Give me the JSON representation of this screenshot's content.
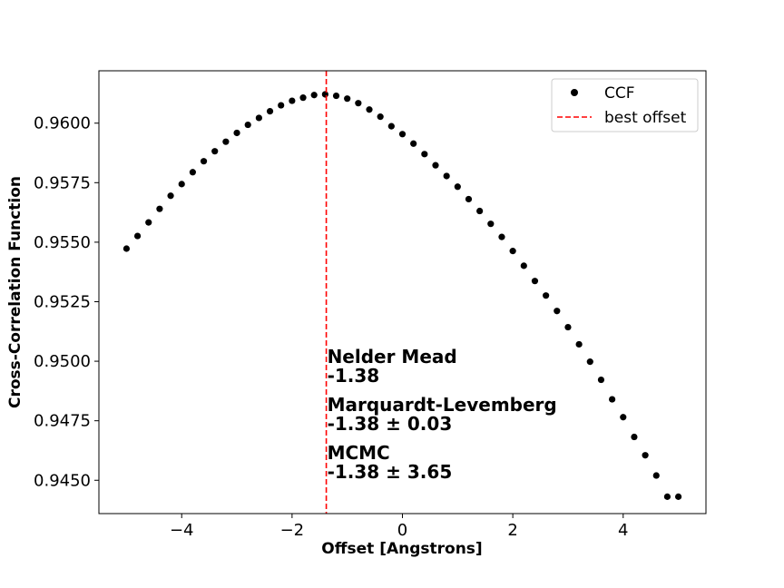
{
  "chart_data": {
    "type": "scatter",
    "xlabel": "Offset [Angstrons]",
    "ylabel": "Cross-Correlation Function",
    "xlim": [
      -5.5,
      5.5
    ],
    "ylim": [
      0.9436,
      0.9622
    ],
    "xticks": [
      -4,
      -2,
      0,
      2,
      4
    ],
    "xtick_labels": [
      "−4",
      "−2",
      "0",
      "2",
      "4"
    ],
    "yticks": [
      0.945,
      0.9475,
      0.95,
      0.9525,
      0.955,
      0.9575,
      0.96
    ],
    "ytick_labels": [
      "0.9450",
      "0.9475",
      "0.9500",
      "0.9525",
      "0.9550",
      "0.9575",
      "0.9600"
    ],
    "grid": false,
    "legend_position": "top-right",
    "series": [
      {
        "name": "CCF",
        "color": "#000000",
        "marker": "circle",
        "x": [
          -5.0,
          -4.8,
          -4.6,
          -4.4,
          -4.2,
          -4.0,
          -3.8,
          -3.6,
          -3.4,
          -3.2,
          -3.0,
          -2.8,
          -2.6,
          -2.4,
          -2.2,
          -2.0,
          -1.8,
          -1.6,
          -1.4,
          -1.2,
          -1.0,
          -0.8,
          -0.6,
          -0.4,
          -0.2,
          0.0,
          0.2,
          0.4,
          0.6,
          0.8,
          1.0,
          1.2,
          1.4,
          1.6,
          1.8,
          2.0,
          2.2,
          2.4,
          2.6,
          2.8,
          3.0,
          3.2,
          3.4,
          3.6,
          3.8,
          4.0,
          4.2,
          4.4,
          4.6,
          4.8,
          5.0
        ],
        "y": [
          0.95473,
          0.95526,
          0.95583,
          0.9564,
          0.95695,
          0.95744,
          0.95794,
          0.9584,
          0.95882,
          0.95922,
          0.95959,
          0.95993,
          0.96022,
          0.9605,
          0.96075,
          0.96094,
          0.96107,
          0.96118,
          0.96121,
          0.96115,
          0.96103,
          0.96084,
          0.96057,
          0.96027,
          0.95987,
          0.95954,
          0.95914,
          0.9587,
          0.95823,
          0.95778,
          0.95733,
          0.95681,
          0.95631,
          0.95577,
          0.95522,
          0.95463,
          0.95401,
          0.95337,
          0.95276,
          0.95211,
          0.95143,
          0.95071,
          0.94998,
          0.94922,
          0.9484,
          0.94765,
          0.94682,
          0.94605,
          0.9452,
          0.94431,
          0.94431
        ]
      }
    ],
    "best_offset": {
      "name": "best offset",
      "x": -1.38,
      "color": "#ff0000",
      "style": "dashed"
    },
    "annotations": [
      {
        "line1": "Nelder Mead",
        "line2": "-1.38"
      },
      {
        "line1": "Marquardt-Levemberg",
        "line2": "-1.38 ± 0.03"
      },
      {
        "line1": "MCMC",
        "line2": "-1.38 ± 3.65"
      }
    ]
  }
}
